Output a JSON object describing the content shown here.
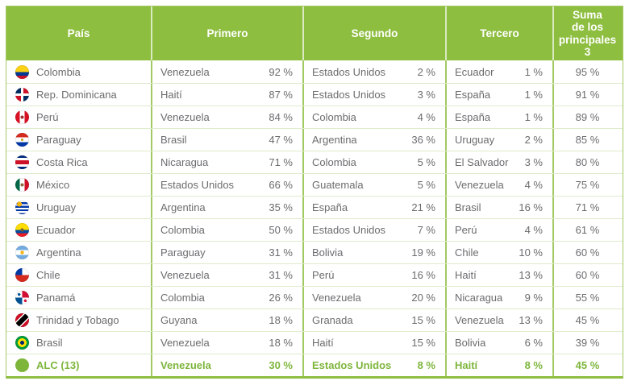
{
  "colors": {
    "green": "#8ebe40",
    "green-dark": "#7eb63c",
    "line": "#a3c964",
    "header-sep": "#d9e9c0",
    "rowline": "#deebcb",
    "text": "#6b6c6e"
  },
  "chart_data": {
    "type": "table",
    "columns": [
      "País",
      "Primero",
      "Segundo",
      "Tercero",
      "Suma\nde los\nprincipales\n3"
    ],
    "rows": [
      {
        "pais": "Colombia",
        "flag": "colombia",
        "primero": {
          "origen": "Venezuela",
          "pct": "92 %"
        },
        "segundo": {
          "origen": "Estados Unidos",
          "pct": "2 %"
        },
        "tercero": {
          "origen": "Ecuador",
          "pct": "1 %"
        },
        "suma": "95 %",
        "highlight": false
      },
      {
        "pais": "Rep. Dominicana",
        "flag": "dominicana",
        "primero": {
          "origen": "Haití",
          "pct": "87 %"
        },
        "segundo": {
          "origen": "Estados Unidos",
          "pct": "3 %"
        },
        "tercero": {
          "origen": "España",
          "pct": "1 %"
        },
        "suma": "91 %",
        "highlight": false
      },
      {
        "pais": "Perú",
        "flag": "peru",
        "primero": {
          "origen": "Venezuela",
          "pct": "84 %"
        },
        "segundo": {
          "origen": "Colombia",
          "pct": "4 %"
        },
        "tercero": {
          "origen": "España",
          "pct": "1 %"
        },
        "suma": "89 %",
        "highlight": false
      },
      {
        "pais": "Paraguay",
        "flag": "paraguay",
        "primero": {
          "origen": "Brasil",
          "pct": "47 %"
        },
        "segundo": {
          "origen": "Argentina",
          "pct": "36 %"
        },
        "tercero": {
          "origen": "Uruguay",
          "pct": "2 %"
        },
        "suma": "85 %",
        "highlight": false
      },
      {
        "pais": "Costa Rica",
        "flag": "costa-rica",
        "primero": {
          "origen": "Nicaragua",
          "pct": "71 %"
        },
        "segundo": {
          "origen": "Colombia",
          "pct": "5 %"
        },
        "tercero": {
          "origen": "El Salvador",
          "pct": "3 %"
        },
        "suma": "80 %",
        "highlight": false
      },
      {
        "pais": "México",
        "flag": "mexico",
        "primero": {
          "origen": "Estados Unidos",
          "pct": "66 %"
        },
        "segundo": {
          "origen": "Guatemala",
          "pct": "5 %"
        },
        "tercero": {
          "origen": "Venezuela",
          "pct": "4 %"
        },
        "suma": "75 %",
        "highlight": false
      },
      {
        "pais": "Uruguay",
        "flag": "uruguay",
        "primero": {
          "origen": "Argentina",
          "pct": "35 %"
        },
        "segundo": {
          "origen": "España",
          "pct": "21 %"
        },
        "tercero": {
          "origen": "Brasil",
          "pct": "16 %"
        },
        "suma": "71 %",
        "highlight": false
      },
      {
        "pais": "Ecuador",
        "flag": "ecuador",
        "primero": {
          "origen": "Colombia",
          "pct": "50 %"
        },
        "segundo": {
          "origen": "Estados Unidos",
          "pct": "7 %"
        },
        "tercero": {
          "origen": "Perú",
          "pct": "4 %"
        },
        "suma": "61 %",
        "highlight": false
      },
      {
        "pais": "Argentina",
        "flag": "argentina",
        "primero": {
          "origen": "Paraguay",
          "pct": "31 %"
        },
        "segundo": {
          "origen": "Bolivia",
          "pct": "19 %"
        },
        "tercero": {
          "origen": "Chile",
          "pct": "10 %"
        },
        "suma": "60 %",
        "highlight": false
      },
      {
        "pais": "Chile",
        "flag": "chile",
        "primero": {
          "origen": "Venezuela",
          "pct": "31 %"
        },
        "segundo": {
          "origen": "Perú",
          "pct": "16 %"
        },
        "tercero": {
          "origen": "Haití",
          "pct": "13 %"
        },
        "suma": "60 %",
        "highlight": false
      },
      {
        "pais": "Panamá",
        "flag": "panama",
        "primero": {
          "origen": "Colombia",
          "pct": "26 %"
        },
        "segundo": {
          "origen": "Venezuela",
          "pct": "20 %"
        },
        "tercero": {
          "origen": "Nicaragua",
          "pct": "9 %"
        },
        "suma": "55 %",
        "highlight": false
      },
      {
        "pais": "Trinidad y Tobago",
        "flag": "trinidad-tobago",
        "primero": {
          "origen": "Guyana",
          "pct": "18 %"
        },
        "segundo": {
          "origen": "Granada",
          "pct": "15 %"
        },
        "tercero": {
          "origen": "Venezuela",
          "pct": "13 %"
        },
        "suma": "45 %",
        "highlight": false
      },
      {
        "pais": "Brasil",
        "flag": "brasil",
        "primero": {
          "origen": "Venezuela",
          "pct": "18 %"
        },
        "segundo": {
          "origen": "Haití",
          "pct": "15 %"
        },
        "tercero": {
          "origen": "Bolivia",
          "pct": "6 %"
        },
        "suma": "39 %",
        "highlight": false
      },
      {
        "pais": "ALC (13)",
        "flag": "alc",
        "primero": {
          "origen": "Venezuela",
          "pct": "30 %"
        },
        "segundo": {
          "origen": "Estados Unidos",
          "pct": "8 %"
        },
        "tercero": {
          "origen": "Haití",
          "pct": "8 %"
        },
        "suma": "45 %",
        "highlight": true
      }
    ]
  }
}
